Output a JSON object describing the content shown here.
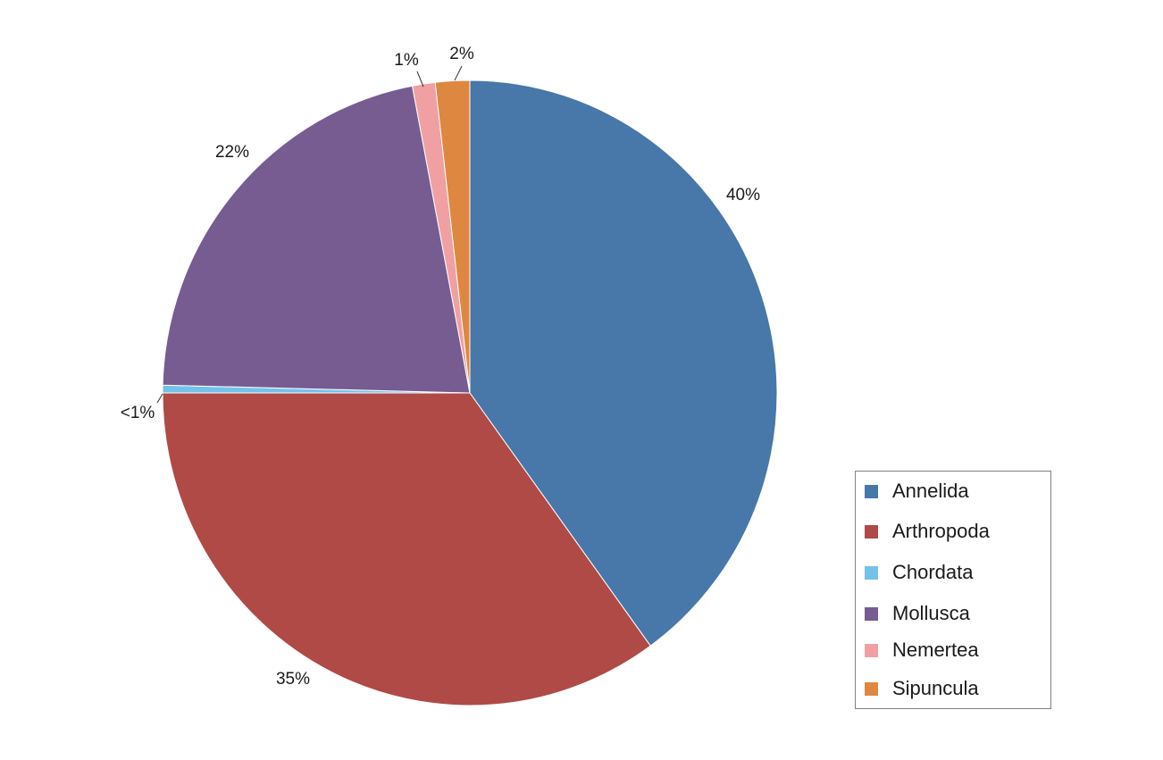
{
  "chart_data": {
    "type": "pie",
    "title": "",
    "legend_position": "bottom-right",
    "slices": [
      {
        "name": "Annelida",
        "value": 40,
        "label": "40%",
        "color": "#4877A9"
      },
      {
        "name": "Arthropoda",
        "value": 35,
        "label": "35%",
        "color": "#B04A47"
      },
      {
        "name": "Chordata",
        "value": 0.4,
        "label": "<1%",
        "color": "#73C2EC"
      },
      {
        "name": "Mollusca",
        "value": 21.6,
        "label": "22%",
        "color": "#765C91"
      },
      {
        "name": "Nemertea",
        "value": 1.2,
        "label": "1%",
        "color": "#F0A0A2"
      },
      {
        "name": "Sipuncula",
        "value": 1.8,
        "label": "2%",
        "color": "#DE8741"
      }
    ]
  }
}
